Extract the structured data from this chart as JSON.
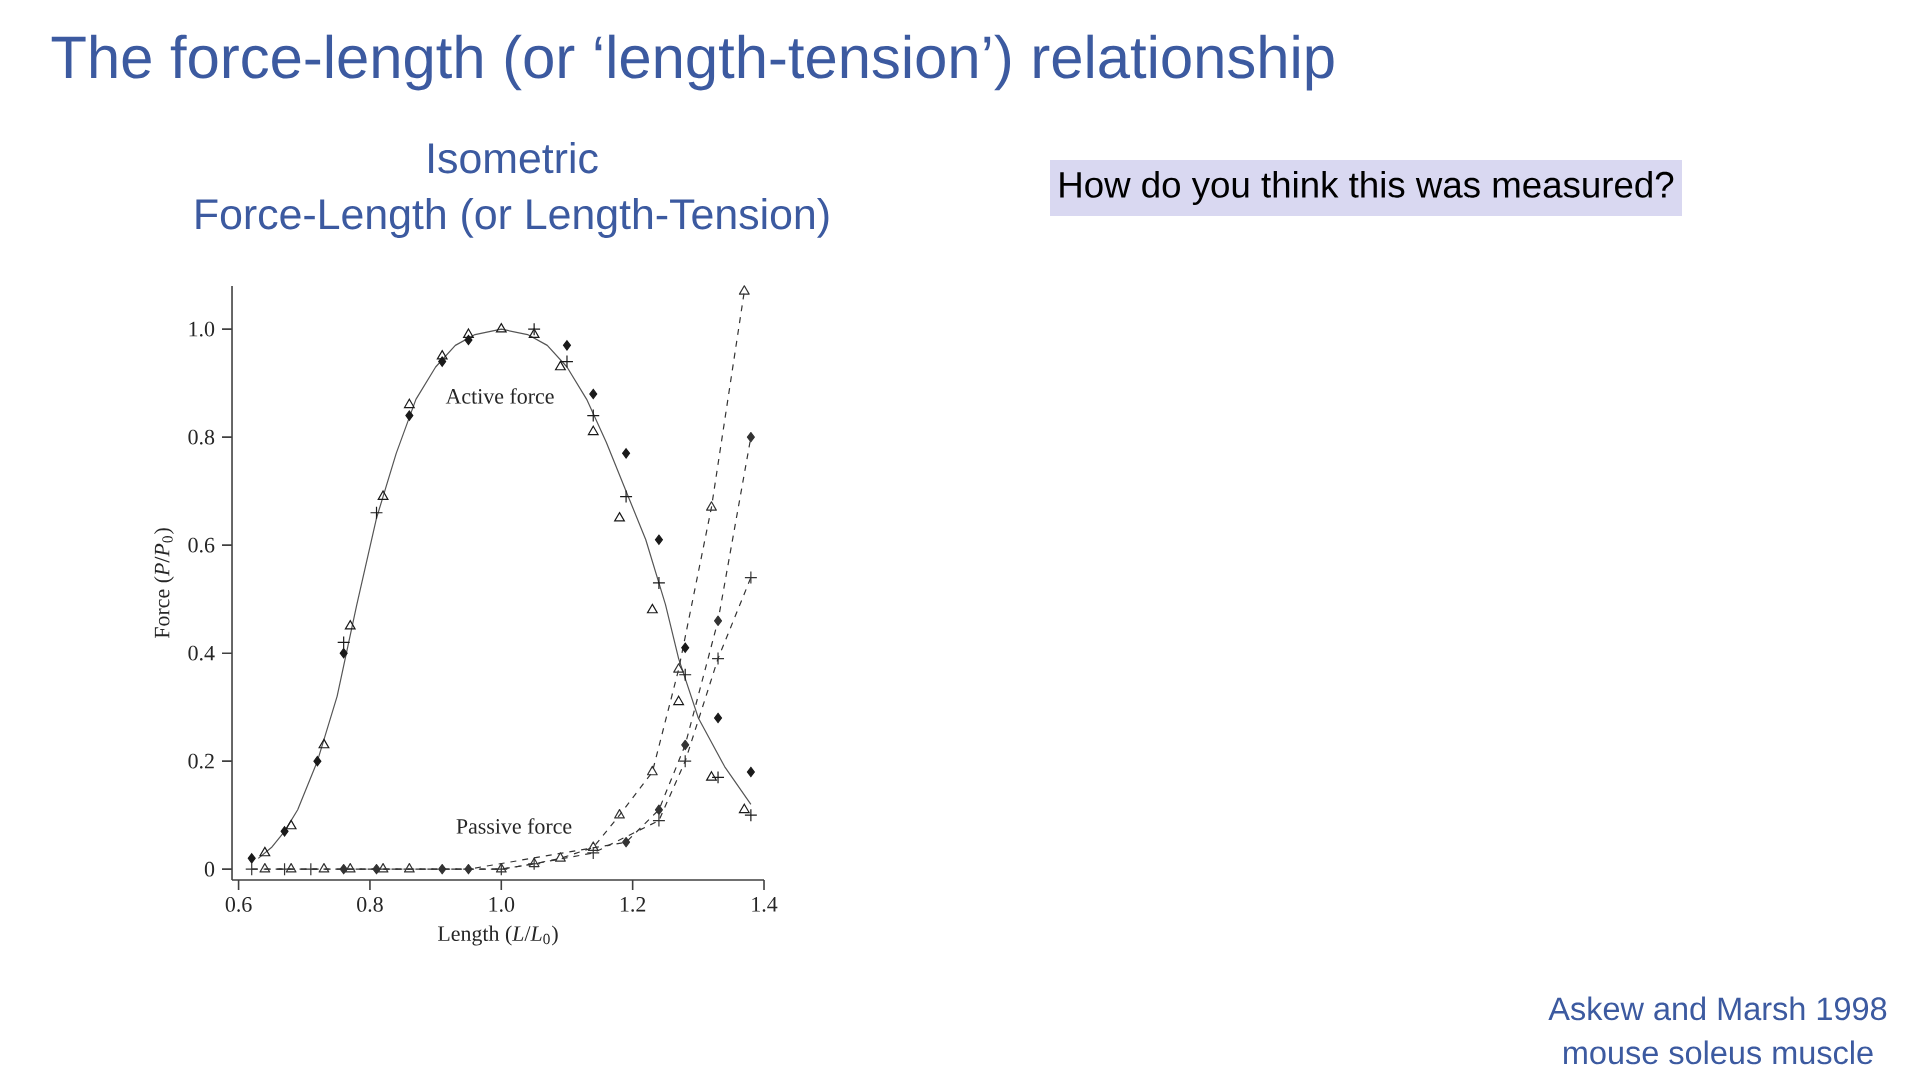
{
  "chart_data": {
    "type": "scatter",
    "title": "Isometric",
    "subtitle": "Force-Length (or Length-Tension)",
    "xlabel": "Length (*L*/*L*$_{0}$)",
    "ylabel": "Force (*P*/*P*$_{0}$)",
    "xlim": [
      0.59,
      1.4
    ],
    "ylim": [
      -0.02,
      1.08
    ],
    "xticks": [
      0.6,
      0.8,
      {
        "value": 1,
        "label": "1.0"
      },
      1.2,
      1.4
    ],
    "yticks": [
      0,
      0.2,
      0.4,
      0.6,
      0.8,
      {
        "value": 1,
        "label": "1.0"
      }
    ],
    "series": [
      {
        "type": "line",
        "color": "#555555",
        "x": [
          0.63,
          0.65,
          0.67,
          0.69,
          0.72,
          0.75,
          0.78,
          0.81,
          0.84,
          0.87,
          0.9,
          0.93,
          0.96,
          1.0,
          1.04,
          1.07,
          1.1,
          1.13,
          1.16,
          1.19,
          1.22,
          1.25,
          1.27,
          1.3,
          1.34,
          1.38
        ],
        "values": [
          0.02,
          0.04,
          0.07,
          0.11,
          0.2,
          0.32,
          0.49,
          0.65,
          0.77,
          0.87,
          0.93,
          0.97,
          0.99,
          1.0,
          0.99,
          0.97,
          0.93,
          0.87,
          0.79,
          0.7,
          0.61,
          0.49,
          0.39,
          0.28,
          0.19,
          0.12
        ]
      },
      {
        "color": "#1a1a1a",
        "marker": "triangle",
        "x": [
          0.64,
          0.68,
          0.73,
          0.77,
          0.82,
          0.86,
          0.91,
          0.95,
          1.0,
          1.05,
          1.09,
          1.14,
          1.18,
          1.23,
          1.27,
          1.32,
          1.37
        ],
        "values": [
          0.03,
          0.08,
          0.23,
          0.45,
          0.69,
          0.86,
          0.95,
          0.99,
          1.0,
          0.99,
          0.93,
          0.81,
          0.65,
          0.48,
          0.31,
          0.17,
          0.11
        ]
      },
      {
        "color": "#1a1a1a",
        "marker": "diamond",
        "x": [
          0.62,
          0.67,
          0.72,
          0.76,
          0.86,
          0.91,
          0.95,
          1.1,
          1.14,
          1.19,
          1.24,
          1.28,
          1.33,
          1.38
        ],
        "values": [
          0.02,
          0.07,
          0.2,
          0.4,
          0.84,
          0.94,
          0.98,
          0.97,
          0.88,
          0.77,
          0.61,
          0.41,
          0.28,
          0.18
        ]
      },
      {
        "color": "#1a1a1a",
        "marker": "cross",
        "x": [
          0.76,
          0.81,
          1.05,
          1.1,
          1.14,
          1.19,
          1.24,
          1.28,
          1.33,
          1.38
        ],
        "values": [
          0.42,
          0.66,
          1.0,
          0.94,
          0.84,
          0.69,
          0.53,
          0.36,
          0.17,
          0.1
        ]
      },
      {
        "type": "line",
        "color": "#333333",
        "marker": "triangle",
        "line_style": "dashed",
        "x": [
          0.64,
          0.68,
          0.73,
          0.77,
          0.82,
          0.86,
          1.0,
          1.05,
          1.09,
          1.14,
          1.18,
          1.23,
          1.27,
          1.32,
          1.37
        ],
        "values": [
          0,
          0,
          0,
          0,
          0,
          0,
          0,
          0.01,
          0.02,
          0.04,
          0.1,
          0.18,
          0.37,
          0.67,
          1.07
        ]
      },
      {
        "type": "line",
        "color": "#333333",
        "marker": "diamond",
        "line_style": "dashed",
        "x": [
          0.76,
          0.81,
          0.91,
          0.95,
          1.19,
          1.24,
          1.28,
          1.33,
          1.38
        ],
        "values": [
          0,
          0,
          0,
          0,
          0.05,
          0.11,
          0.23,
          0.46,
          0.8
        ]
      },
      {
        "type": "line",
        "color": "#333333",
        "marker": "cross",
        "line_style": "dashed",
        "x": [
          0.62,
          0.67,
          0.71,
          1.0,
          1.05,
          1.14,
          1.24,
          1.28,
          1.33,
          1.38
        ],
        "values": [
          0,
          0,
          0,
          0,
          0.01,
          0.03,
          0.09,
          0.2,
          0.39,
          0.54
        ]
      }
    ],
    "annotations": [
      "The force-length (or ‘length-tension’) relationship",
      "Active force",
      "Passive force",
      "How do you think this was measured?",
      "Askew and Marsh 1998",
      "mouse soleus muscle"
    ]
  }
}
